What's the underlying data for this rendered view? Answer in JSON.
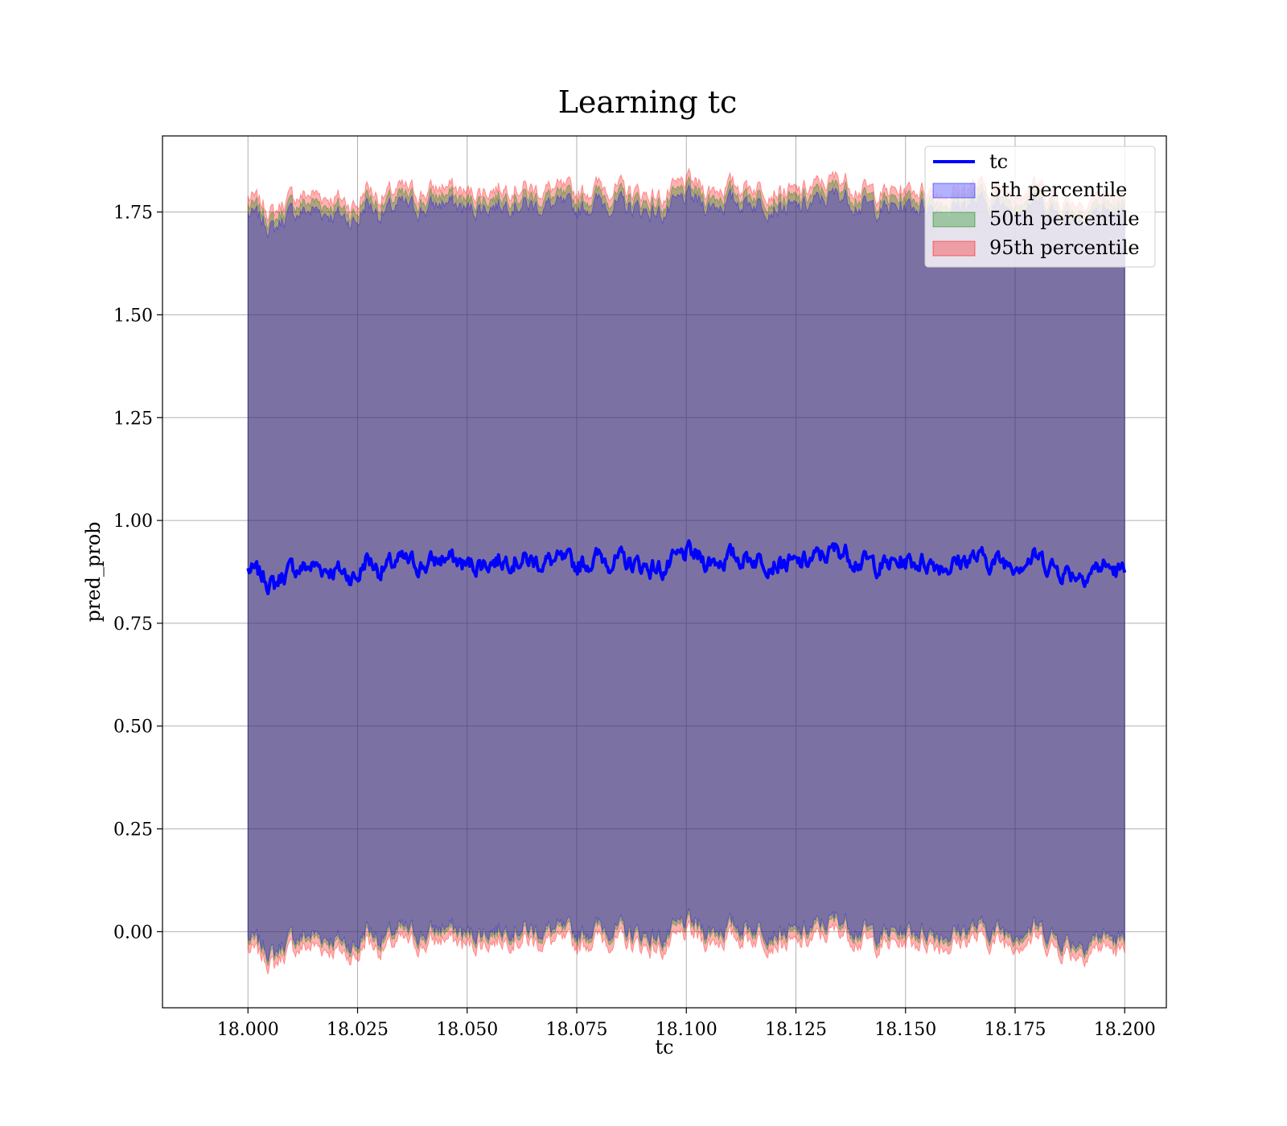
{
  "chart_data": {
    "type": "line",
    "title": "Learning tc",
    "xlabel": "tc",
    "ylabel": "pred_prob",
    "xlim": [
      17.9805,
      18.2095
    ],
    "ylim": [
      -0.185,
      1.935
    ],
    "x_ticks": [
      18.0,
      18.025,
      18.05,
      18.075,
      18.1,
      18.125,
      18.15,
      18.175,
      18.2
    ],
    "x_tick_labels": [
      "18.000",
      "18.025",
      "18.050",
      "18.075",
      "18.100",
      "18.125",
      "18.150",
      "18.175",
      "18.200"
    ],
    "y_ticks": [
      0.0,
      0.25,
      0.5,
      0.75,
      1.0,
      1.25,
      1.5,
      1.75
    ],
    "y_tick_labels": [
      "0.00",
      "0.25",
      "0.50",
      "0.75",
      "1.00",
      "1.25",
      "1.50",
      "1.75"
    ],
    "grid": true,
    "legend_position": "top-right",
    "colors": {
      "line": "#0000ff",
      "band_5": "#0000ff",
      "band_50": "#008000",
      "band_95": "#ff0000",
      "grid": "#b0b0b0"
    },
    "series": [
      {
        "name": "tc",
        "type": "line",
        "x": [
          18.0,
          18.002,
          18.004,
          18.006,
          18.008,
          18.01,
          18.015,
          18.02,
          18.025,
          18.027,
          18.03,
          18.035,
          18.04,
          18.045,
          18.05,
          18.055,
          18.06,
          18.065,
          18.07,
          18.075,
          18.08,
          18.085,
          18.09,
          18.095,
          18.1,
          18.105,
          18.11,
          18.115,
          18.12,
          18.125,
          18.13,
          18.135,
          18.14,
          18.145,
          18.15,
          18.155,
          18.16,
          18.165,
          18.17,
          18.175,
          18.18,
          18.185,
          18.19,
          18.195,
          18.2
        ],
        "values": [
          0.88,
          0.87,
          0.86,
          0.84,
          0.87,
          0.88,
          0.89,
          0.88,
          0.86,
          0.91,
          0.88,
          0.9,
          0.89,
          0.91,
          0.89,
          0.9,
          0.91,
          0.9,
          0.9,
          0.89,
          0.91,
          0.9,
          0.89,
          0.88,
          0.92,
          0.9,
          0.91,
          0.91,
          0.9,
          0.89,
          0.91,
          0.93,
          0.9,
          0.89,
          0.9,
          0.9,
          0.89,
          0.91,
          0.9,
          0.9,
          0.91,
          0.88,
          0.87,
          0.89,
          0.87
        ]
      },
      {
        "name": "5th percentile",
        "type": "band",
        "lower_offset": 0.895,
        "upper_offset": 0.865
      },
      {
        "name": "50th percentile",
        "type": "band",
        "lower_offset": 0.905,
        "upper_offset": 0.885
      },
      {
        "name": "95th percentile",
        "type": "band",
        "lower_offset": 0.925,
        "upper_offset": 0.905
      }
    ],
    "legend": [
      "tc",
      "5th percentile",
      "50th percentile",
      "95th percentile"
    ]
  }
}
